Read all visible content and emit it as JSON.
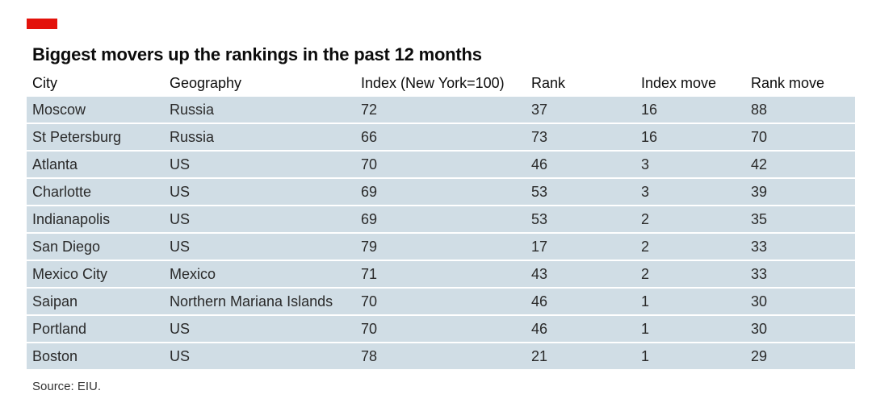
{
  "brand": {
    "accent_color": "#e3120b",
    "row_color": "#d0dde5"
  },
  "chart_data": {
    "type": "table",
    "title": "Biggest movers up the rankings in the past 12 months",
    "columns": [
      "City",
      "Geography",
      "Index (New York=100)",
      "Rank",
      "Index move",
      "Rank move"
    ],
    "rows": [
      [
        "Moscow",
        "Russia",
        "72",
        "37",
        "16",
        "88"
      ],
      [
        "St Petersburg",
        "Russia",
        "66",
        "73",
        "16",
        "70"
      ],
      [
        "Atlanta",
        "US",
        "70",
        "46",
        "3",
        "42"
      ],
      [
        "Charlotte",
        "US",
        "69",
        "53",
        "3",
        "39"
      ],
      [
        "Indianapolis",
        "US",
        "69",
        "53",
        "2",
        "35"
      ],
      [
        "San Diego",
        "US",
        "79",
        "17",
        "2",
        "33"
      ],
      [
        "Mexico City",
        "Mexico",
        "71",
        "43",
        "2",
        "33"
      ],
      [
        "Saipan",
        "Northern Mariana Islands",
        "70",
        "46",
        "1",
        "30"
      ],
      [
        "Portland",
        "US",
        "70",
        "46",
        "1",
        "30"
      ],
      [
        "Boston",
        "US",
        "78",
        "21",
        "1",
        "29"
      ]
    ],
    "source": "Source: EIU."
  }
}
